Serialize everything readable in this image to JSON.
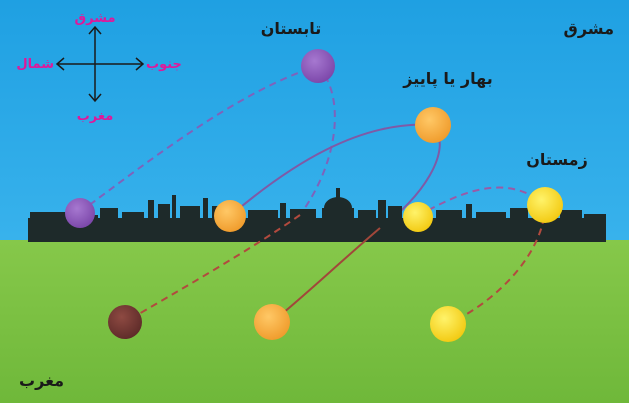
{
  "labels": {
    "east": "مشرق",
    "west": "مغرب",
    "summer": "تابستان",
    "spring_autumn": "بهار یا پاییز",
    "winter": "زمستان"
  },
  "compass": {
    "north_label": "مشرق",
    "south_label": "مغرب",
    "east_label": "جنوب",
    "west_label": "شمال"
  },
  "colors": {
    "sky": "#2aa6e6",
    "ground": "#7cc241",
    "skyline": "#1e2a2a",
    "summer_sun": "#8b57b5",
    "summer_sun_set": "#6e3a3a",
    "equinox_sun": "#f4a83a",
    "winter_sun": "#f5d81a",
    "path_summer": "#7a5fb8",
    "path_equinox": "#7d4a8e",
    "path_winter": "#9a5aa6",
    "label_text": "#1a1a1a",
    "compass_text": "#e0189a"
  }
}
